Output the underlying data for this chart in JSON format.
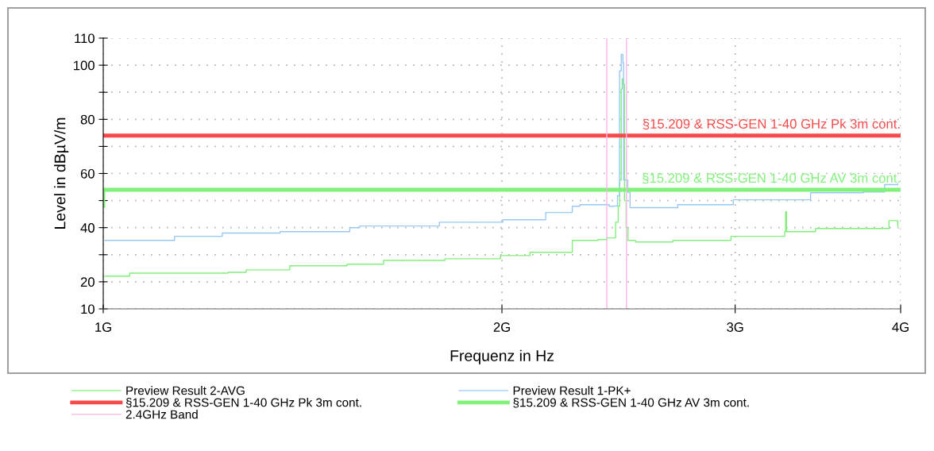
{
  "chart_data": {
    "type": "step",
    "xlabel": "Frequenz in Hz",
    "ylabel": "Level in dBµV/m",
    "log": "x",
    "xlim": [
      1,
      4
    ],
    "xticks": [
      {
        "value": 1,
        "label": "1G"
      },
      {
        "value": 2,
        "label": "2G"
      },
      {
        "value": 3,
        "label": "3G"
      },
      {
        "value": 4,
        "label": "4G"
      }
    ],
    "ylim": [
      10,
      110
    ],
    "yticks": [
      10,
      20,
      {
        "value": 30,
        "label": null
      },
      40,
      {
        "value": 50,
        "label": null
      },
      60,
      {
        "value": 70,
        "label": null
      },
      80,
      {
        "value": 90,
        "label": null
      },
      100,
      110
    ],
    "grid": true,
    "legend": "bottom",
    "line_style": "solid",
    "series": [
      {
        "name": "Preview Result 2-AVG",
        "color": "#80f07a",
        "x": [
          1.003,
          1.047,
          1.242,
          1.282,
          1.383,
          1.528,
          1.628,
          1.811,
          1.995,
          2.1,
          2.26,
          2.364,
          2.4,
          2.437,
          2.448,
          2.454,
          2.461,
          2.465,
          2.468,
          2.475,
          2.482,
          2.49,
          2.523,
          2.692,
          2.978,
          3.27,
          3.275,
          3.28,
          3.45,
          3.75,
          3.92,
          3.98
        ],
        "values": [
          22.1,
          23.2,
          23.5,
          24.4,
          25.9,
          26.5,
          27.9,
          28.5,
          29.7,
          30.9,
          35.3,
          35.6,
          36.2,
          42,
          47.9,
          57.6,
          91.2,
          95,
          92.9,
          50,
          40,
          35.3,
          34.7,
          35.3,
          36.8,
          38.5,
          45.9,
          38.5,
          39.7,
          39.7,
          42.6,
          40.6
        ]
      },
      {
        "name": "Preview Result 1-PK+",
        "color": "#99c8f5",
        "x": [
          1.003,
          1.132,
          1.23,
          1.36,
          1.535,
          1.562,
          1.794,
          2.003,
          2.158,
          2.26,
          2.29,
          2.41,
          2.431,
          2.445,
          2.454,
          2.461,
          2.468,
          2.471,
          2.489,
          2.499,
          2.715,
          2.99,
          3.42,
          3.75,
          3.89,
          3.98
        ],
        "values": [
          35.3,
          36.8,
          38,
          38.5,
          40,
          40.6,
          42,
          42.9,
          45.6,
          47.9,
          48.5,
          47.9,
          48,
          51.8,
          97.9,
          104,
          100.9,
          57.6,
          53,
          47.4,
          48.5,
          50.3,
          52.9,
          53.2,
          55.9,
          56.2
        ]
      },
      {
        "name": "§15.209 & RSS-GEN 1-40 GHz Pk 3m cont.",
        "type": "line",
        "color": "#f74a4a",
        "x": [
          1,
          4
        ],
        "values": [
          74,
          74
        ]
      },
      {
        "name": "§15.209 & RSS-GEN 1-40 GHz AV 3m cont.",
        "type": "line",
        "color": "#80f27a",
        "x": [
          1,
          1,
          4
        ],
        "values": [
          48,
          54,
          54
        ]
      }
    ],
    "ref_lines": [
      {
        "axis": "x",
        "value": 2.4,
        "label": "2.4GHz Band",
        "color": "#f7b5e6"
      },
      {
        "axis": "x",
        "value": 2.4835,
        "label": null,
        "color": "#f7b5e6"
      }
    ],
    "annotations": [
      "§15.209 & RSS-GEN 1-40 GHz Pk 3m cont.",
      "§15.209 & RSS-GEN 1-40 GHz AV 3m cont."
    ]
  }
}
